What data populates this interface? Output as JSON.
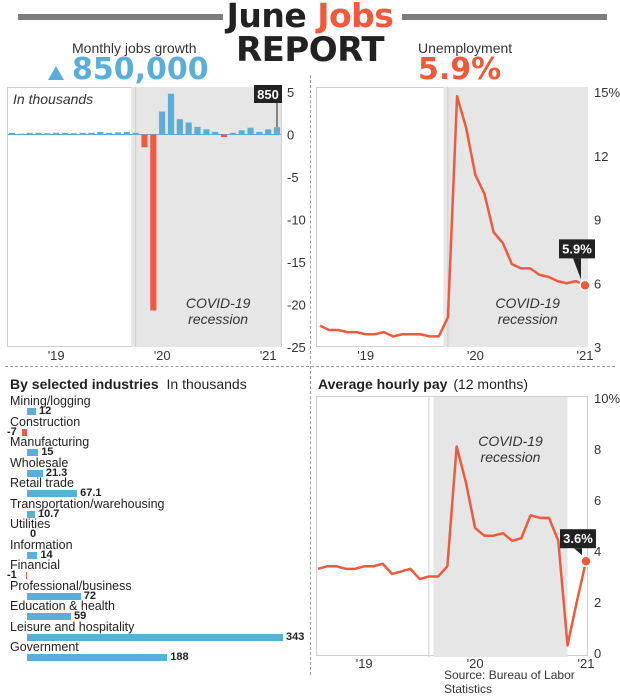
{
  "header": {
    "title_part1": "June ",
    "title_part2": "Jobs",
    "title_line2": "REPORT",
    "jobs_label": "Monthly jobs growth",
    "jobs_value": "850,000",
    "unemp_label": "Unemployment",
    "unemp_value": "5.9%"
  },
  "colors": {
    "blue": "#5aaed8",
    "red": "#ef5a3c",
    "recession": "#e6e6e6",
    "grey": "#7d7d7d",
    "dark": "#222222"
  },
  "source": "Source: Bureau of Labor Statistics",
  "recession_label_1": "COVID-19",
  "recession_label_2": "recession",
  "chart_data": [
    {
      "type": "bar",
      "id": "jobs",
      "note": "In thousands",
      "ylim": [
        -25,
        5
      ],
      "yticks": [
        5,
        0,
        -5,
        -10,
        -15,
        -20,
        -25
      ],
      "xtick_labels": [
        "'19",
        "'20",
        "'21"
      ],
      "xtick_index": [
        5,
        17,
        29
      ],
      "recession_index": [
        14,
        38
      ],
      "callout": "850",
      "values": [
        0.2,
        0.1,
        0.2,
        0.2,
        0.15,
        0.2,
        0.2,
        0.15,
        0.2,
        0.2,
        0.3,
        0.2,
        0.25,
        0.3,
        0.2,
        -1.5,
        -20.7,
        2.7,
        4.8,
        1.8,
        1.4,
        0.9,
        0.6,
        0.3,
        -0.3,
        0.2,
        0.5,
        0.8,
        0.3,
        0.6,
        0.85
      ]
    },
    {
      "type": "line",
      "id": "unemployment",
      "ylim": [
        3,
        15
      ],
      "yticks": [
        15,
        12,
        9,
        6,
        3
      ],
      "ytick_labels": [
        "15%",
        "12",
        "9",
        "6",
        "3"
      ],
      "xtick_labels": [
        "'19",
        "'20",
        "'21"
      ],
      "xtick_index": [
        5,
        17,
        29
      ],
      "recession_index": [
        14,
        38
      ],
      "callout": "5.9%",
      "values": [
        4.0,
        3.8,
        3.8,
        3.7,
        3.7,
        3.6,
        3.6,
        3.7,
        3.5,
        3.6,
        3.6,
        3.6,
        3.5,
        3.5,
        4.4,
        14.8,
        13.3,
        11.1,
        10.2,
        8.4,
        7.9,
        6.9,
        6.7,
        6.7,
        6.4,
        6.3,
        6.1,
        6.0,
        6.1,
        5.9
      ]
    },
    {
      "type": "bar",
      "id": "industries",
      "title": "By selected industries",
      "subtitle": "In thousands",
      "xmax": 343,
      "categories": [
        "Mining/logging",
        "Construction",
        "Manufacturing",
        "Wholesale",
        "Retail trade",
        "Transportation/warehousing",
        "Utilities",
        "Information",
        "Financial",
        "Professional/business",
        "Education & health",
        "Leisure and hospitality",
        "Government"
      ],
      "values": [
        12,
        -7,
        15,
        21.3,
        67.1,
        10.7,
        0,
        14,
        -1,
        72,
        59,
        343,
        188
      ],
      "value_labels": [
        "12",
        "-7",
        "15",
        "21.3",
        "67.1",
        "10.7",
        "0",
        "14",
        "-1",
        "72",
        "59",
        "343",
        "188"
      ]
    },
    {
      "type": "line",
      "id": "hourly_pay",
      "title": "Average hourly pay",
      "subtitle": "(12 months)",
      "ylim": [
        0,
        10
      ],
      "yticks": [
        10,
        8,
        6,
        4,
        2,
        0
      ],
      "ytick_labels": [
        "10%",
        "8",
        "6",
        "4",
        "2",
        "0"
      ],
      "xtick_labels": [
        "'19",
        "'20",
        "'21"
      ],
      "xtick_index": [
        5,
        17,
        29
      ],
      "recession_index": [
        13,
        27
      ],
      "callout": "3.6%",
      "values": [
        3.3,
        3.4,
        3.4,
        3.3,
        3.3,
        3.4,
        3.4,
        3.5,
        3.1,
        3.2,
        3.3,
        2.9,
        3.0,
        3.0,
        3.4,
        8.1,
        6.7,
        4.9,
        4.6,
        4.6,
        4.7,
        4.4,
        4.5,
        5.4,
        5.3,
        5.3,
        4.4,
        0.3,
        2.0,
        3.6
      ]
    }
  ]
}
